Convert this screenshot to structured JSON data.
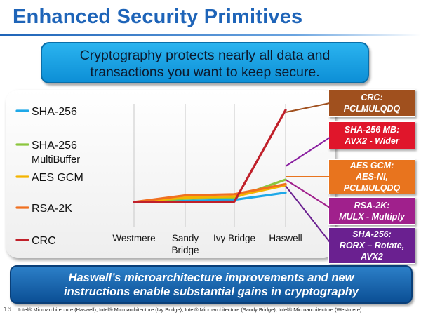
{
  "slide": {
    "title": "Enhanced Security Primitives",
    "callout_lines": [
      "Cryptography protects nearly all data and",
      "transactions you want to keep secure."
    ],
    "bottom_lines": [
      "Haswell’s microarchitecture improvements and new",
      "instructions enable substantial gains in cryptography"
    ],
    "page_number": "16",
    "footer": "Intel® Microarchitecture (Haswell); Intel® Microarchitecture (Ivy Bridge); Intel® Microarchitecture (Sandy Bridge); Intel® Microarchitecture (Westmere)"
  },
  "tags": [
    {
      "lines": [
        "CRC:",
        "PCLMULQDQ"
      ],
      "color": "#a0501e"
    },
    {
      "lines": [
        "SHA-256 MB:",
        "AVX2 - Wider"
      ],
      "color": "#e0162b"
    },
    {
      "lines": [
        "AES GCM:",
        "AES-NI,",
        "PCLMULQDQ"
      ],
      "color": "#e8741e"
    },
    {
      "lines": [
        "RSA-2K:",
        "MULX - Multiply"
      ],
      "color": "#a0208c"
    },
    {
      "lines": [
        "SHA-256:",
        "RORX – Rotate,",
        "AVX2"
      ],
      "color": "#6a2090"
    }
  ],
  "chart_data": {
    "type": "line",
    "categories": [
      "Westmere",
      "Sandy Bridge",
      "Ivy Bridge",
      "Haswell"
    ],
    "series": [
      {
        "name": "SHA-256",
        "color": "#1ea8e8",
        "values": [
          1.0,
          1.05,
          1.1,
          1.42
        ]
      },
      {
        "name": "SHA-256 MultiBuffer",
        "color": "#8cc63e",
        "values": [
          1.0,
          1.15,
          1.2,
          2.0
        ]
      },
      {
        "name": "AES GCM",
        "color": "#f4b400",
        "values": [
          1.0,
          1.2,
          1.25,
          1.75
        ]
      },
      {
        "name": "RSA-2K",
        "color": "#f07020",
        "values": [
          1.0,
          1.3,
          1.35,
          1.8
        ]
      },
      {
        "name": "CRC",
        "color": "#c0202a",
        "values": [
          1.0,
          1.0,
          1.02,
          5.1
        ]
      }
    ],
    "ylim": [
      0,
      5.5
    ],
    "grid": "vertical",
    "legend": "left"
  }
}
